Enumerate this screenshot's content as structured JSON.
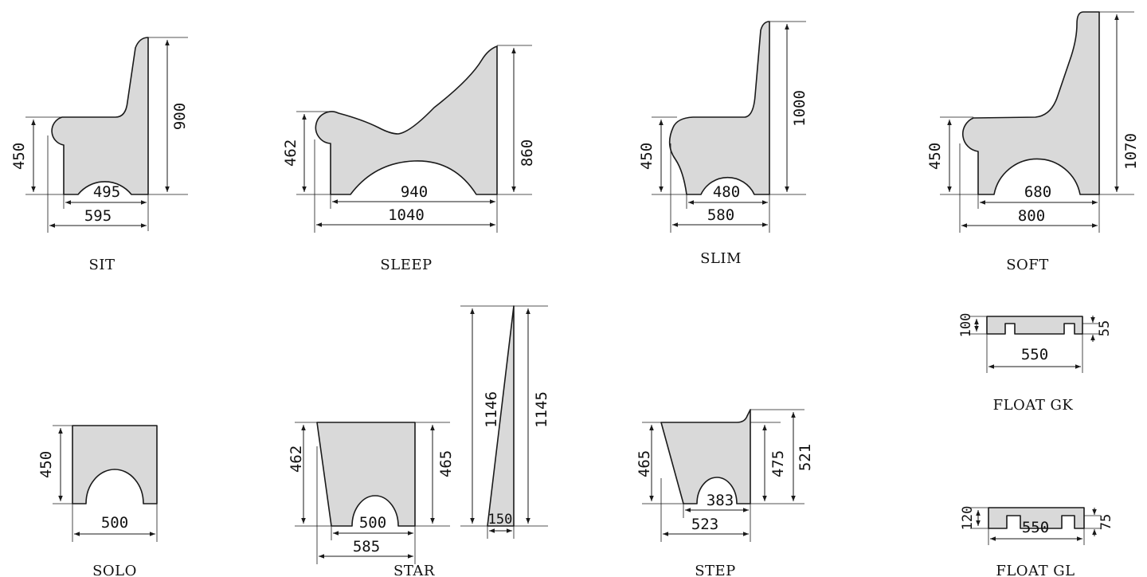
{
  "models": [
    {
      "name": "SIT",
      "dims": [
        "450",
        "900",
        "495",
        "595"
      ]
    },
    {
      "name": "SLEEP",
      "dims": [
        "462",
        "860",
        "940",
        "1040"
      ]
    },
    {
      "name": "SLIM",
      "dims": [
        "450",
        "1000",
        "480",
        "580"
      ]
    },
    {
      "name": "SOFT",
      "dims": [
        "450",
        "1070",
        "680",
        "800"
      ]
    },
    {
      "name": "SOLO",
      "dims": [
        "450",
        "500"
      ]
    },
    {
      "name": "STAR",
      "dims": [
        "462",
        "465",
        "500",
        "585",
        "1146",
        "1145",
        "150"
      ]
    },
    {
      "name": "STEP",
      "dims": [
        "465",
        "475",
        "521",
        "383",
        "523"
      ]
    },
    {
      "name": "FLOAT GK",
      "dims": [
        "100",
        "55",
        "550"
      ]
    },
    {
      "name": "FLOAT GL",
      "dims": [
        "120",
        "75",
        "550"
      ]
    }
  ]
}
